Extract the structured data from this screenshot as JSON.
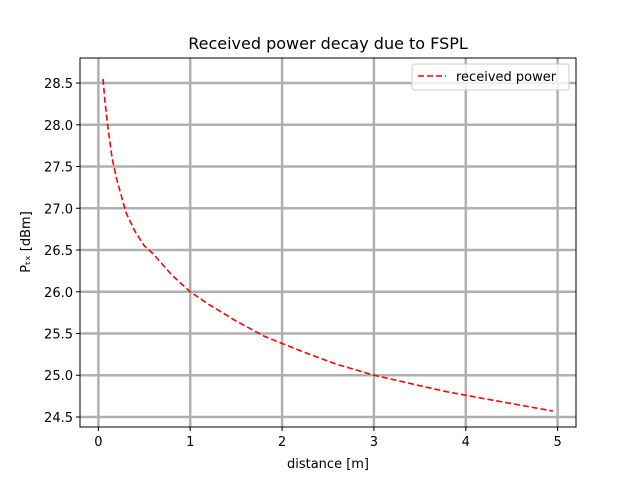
{
  "chart_data": {
    "type": "line",
    "title": "Received power decay due to FSPL",
    "xlabel": "distance [m]",
    "ylabel": "Pₜₓ [dBm]",
    "xlim": [
      -0.2,
      5.2
    ],
    "ylim": [
      24.38,
      28.8
    ],
    "xticks": [
      0,
      1,
      2,
      3,
      4,
      5
    ],
    "yticks": [
      24.5,
      25.0,
      25.5,
      26.0,
      26.5,
      27.0,
      27.5,
      28.0,
      28.5
    ],
    "ytick_labels": [
      "24.5",
      "25.0",
      "25.5",
      "26.0",
      "26.5",
      "27.0",
      "27.5",
      "28.0",
      "28.5"
    ],
    "grid": true,
    "legend_position": "top-right",
    "series": [
      {
        "name": "received power",
        "color": "#ff0000",
        "line_style": "dashed",
        "x": [
          0.05,
          0.07,
          0.1,
          0.15,
          0.2,
          0.3,
          0.4,
          0.5,
          0.6,
          0.8,
          1.0,
          1.2,
          1.5,
          1.8,
          2.0,
          2.3,
          2.6,
          3.0,
          3.4,
          3.8,
          4.2,
          4.6,
          4.95
        ],
        "y": [
          28.55,
          28.3,
          28.0,
          27.6,
          27.35,
          26.95,
          26.72,
          26.55,
          26.45,
          26.2,
          26.0,
          25.85,
          25.65,
          25.47,
          25.38,
          25.25,
          25.13,
          25.0,
          24.9,
          24.8,
          24.72,
          24.64,
          24.57
        ]
      }
    ]
  }
}
